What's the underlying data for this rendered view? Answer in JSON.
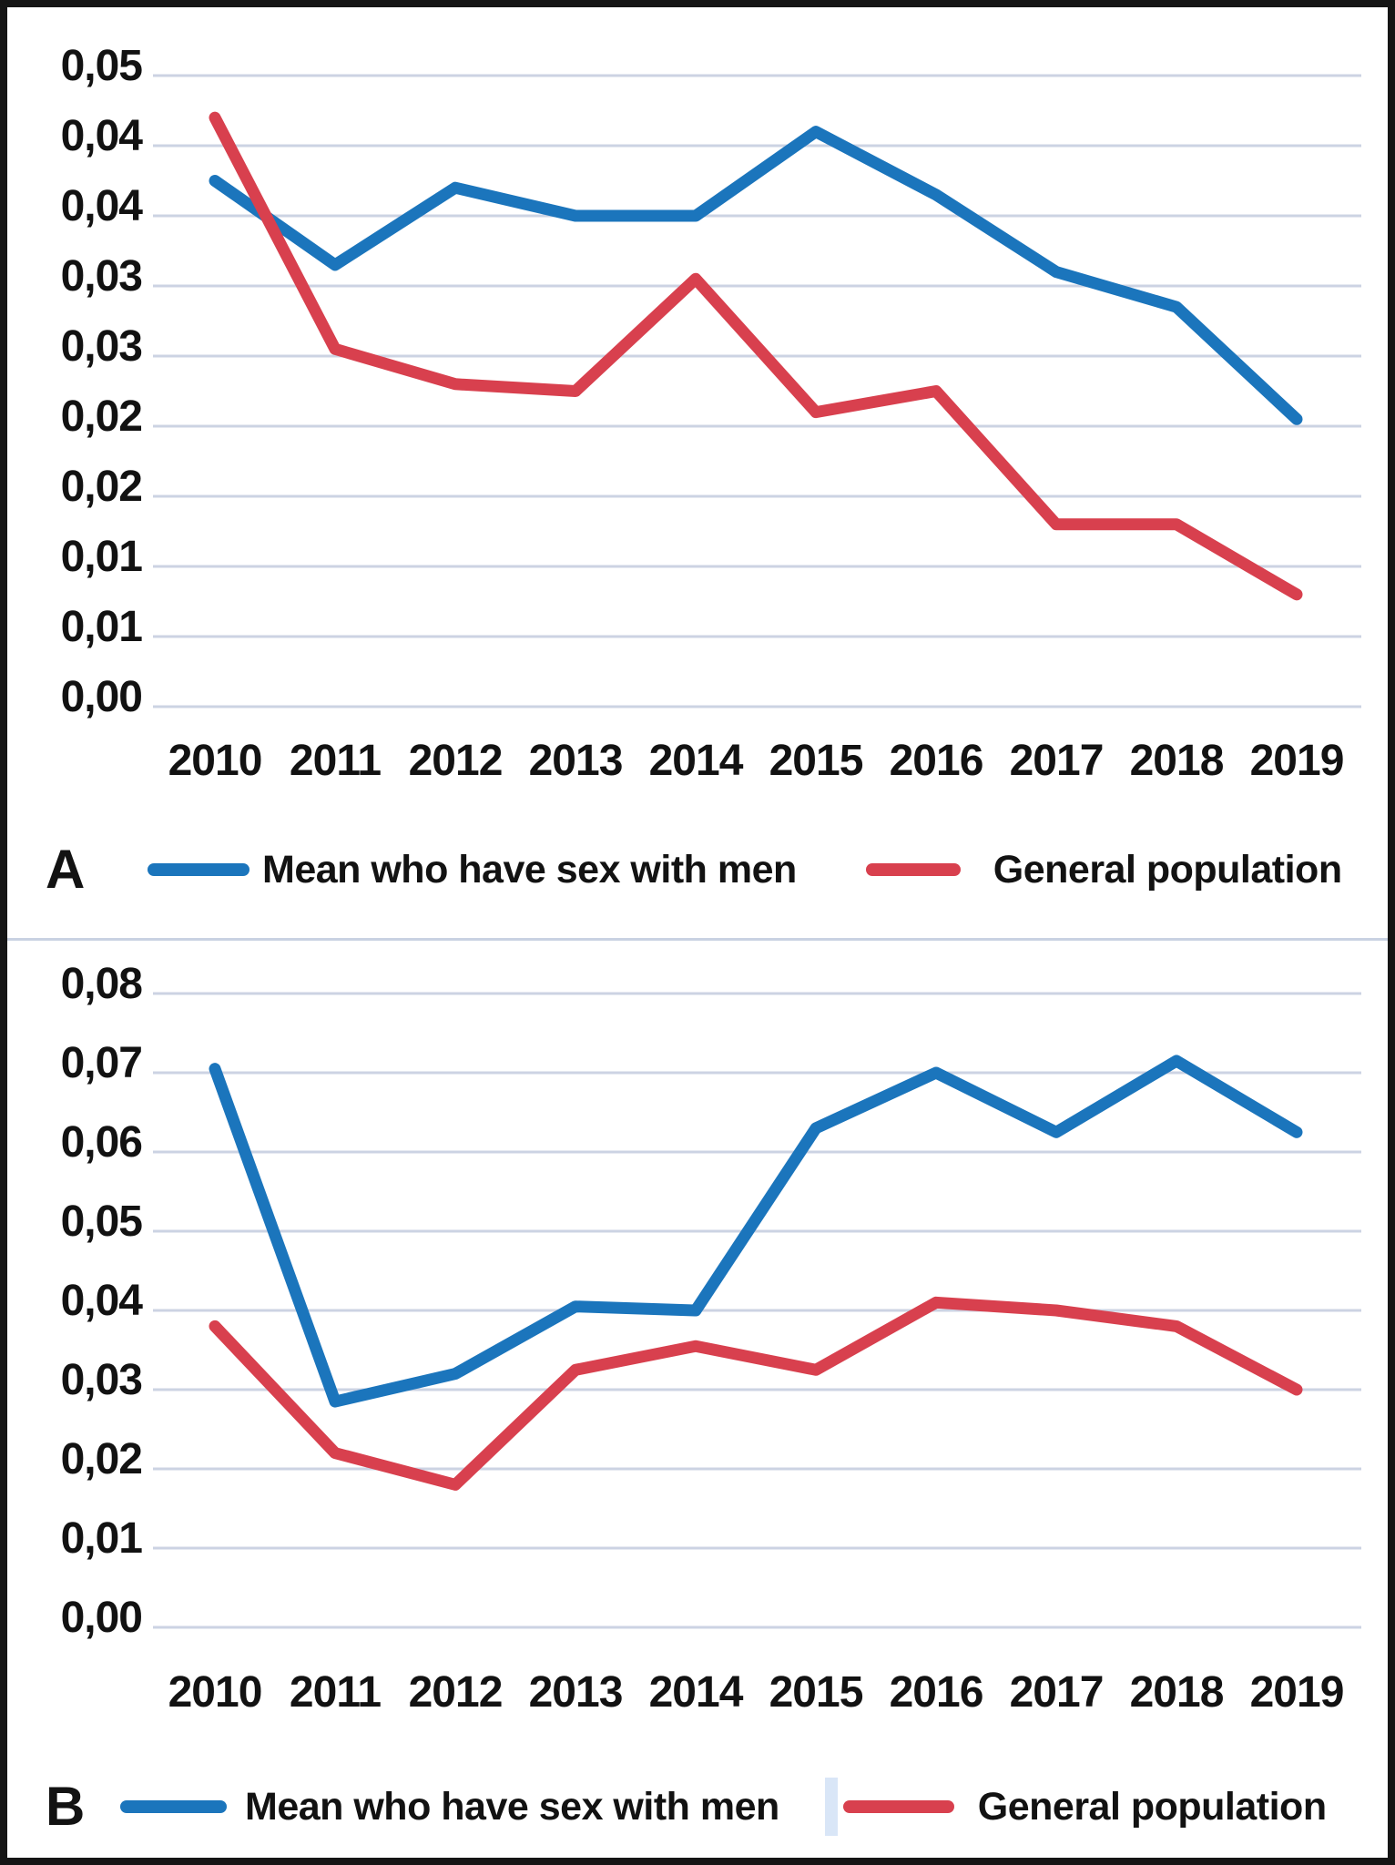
{
  "figure": {
    "panels": [
      {
        "label": "A"
      },
      {
        "label": "B"
      }
    ],
    "colors": {
      "msm_line": "#1b75bc",
      "general_line": "#d8404e",
      "gridline": "#ccd3e3",
      "text": "#121212",
      "border": "#151515"
    }
  },
  "chart_data": [
    {
      "type": "line",
      "panel_label": "A",
      "title": "",
      "xlabel": "",
      "ylabel": "",
      "categories": [
        "2010",
        "2011",
        "2012",
        "2013",
        "2014",
        "2015",
        "2016",
        "2017",
        "2018",
        "2019"
      ],
      "series": [
        {
          "name": "Mean who have sex with men",
          "color": "#1b75bc",
          "values": [
            0.0375,
            0.0315,
            0.037,
            0.035,
            0.035,
            0.041,
            0.0365,
            0.031,
            0.0285,
            0.0205
          ]
        },
        {
          "name": "General population",
          "color": "#d8404e",
          "values": [
            0.042,
            0.0255,
            0.023,
            0.0225,
            0.0305,
            0.021,
            0.0225,
            0.013,
            0.013,
            0.008
          ]
        }
      ],
      "ylim": [
        0,
        0.045
      ],
      "y_step": 0.005,
      "y_tick_labels": [
        "0,05",
        "0,04",
        "0,04",
        "0,03",
        "0,03",
        "0,02",
        "0,02",
        "0,01",
        "0,01",
        "0,00"
      ],
      "decimal_separator": ",",
      "grid": true,
      "legend_position": "bottom"
    },
    {
      "type": "line",
      "panel_label": "B",
      "title": "",
      "xlabel": "",
      "ylabel": "",
      "categories": [
        "2010",
        "2011",
        "2012",
        "2013",
        "2014",
        "2015",
        "2016",
        "2017",
        "2018",
        "2019"
      ],
      "series": [
        {
          "name": "Mean who have sex with men",
          "color": "#1b75bc",
          "values": [
            0.0705,
            0.0285,
            0.032,
            0.0405,
            0.04,
            0.063,
            0.07,
            0.0625,
            0.0715,
            0.0625
          ]
        },
        {
          "name": "General population",
          "color": "#d8404e",
          "values": [
            0.038,
            0.022,
            0.018,
            0.0325,
            0.0355,
            0.0325,
            0.041,
            0.04,
            0.038,
            0.03
          ]
        }
      ],
      "ylim": [
        0,
        0.08
      ],
      "y_step": 0.01,
      "y_tick_labels": [
        "0,08",
        "0,07",
        "0,06",
        "0,05",
        "0,04",
        "0,03",
        "0,02",
        "0,01",
        "0,00"
      ],
      "decimal_separator": ",",
      "grid": true,
      "legend_position": "bottom"
    }
  ]
}
